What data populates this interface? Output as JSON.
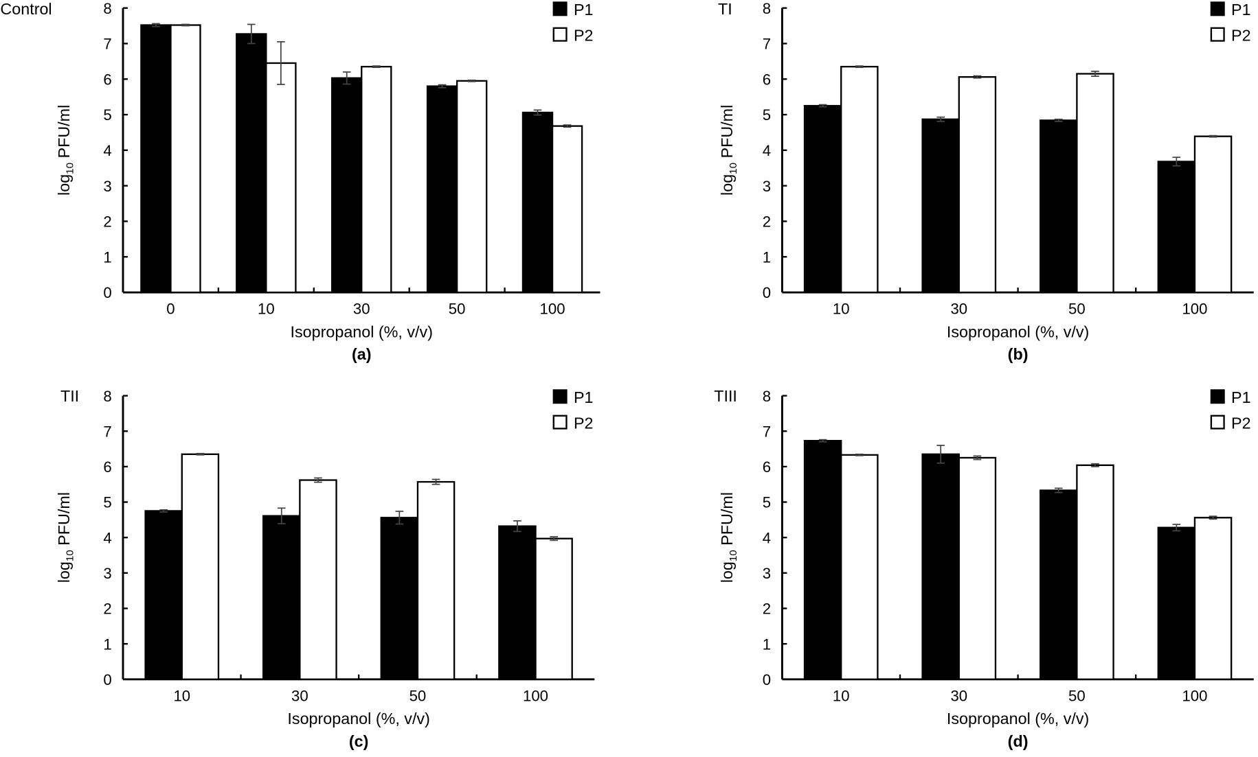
{
  "chart_data": [
    {
      "type": "bar",
      "panel_label": "(a)",
      "title": "Control",
      "xlabel": "Isopropanol (%, v/v)",
      "ylabel": "log10 PFU/ml",
      "ylim": [
        0,
        8
      ],
      "yticks": [
        "0",
        "1",
        "2",
        "3",
        "4",
        "5",
        "6",
        "7",
        "8"
      ],
      "categories": [
        "0",
        "10",
        "30",
        "50",
        "100"
      ],
      "legend_position": "top-right",
      "series": [
        {
          "name": "P1",
          "color": "#000000",
          "values": [
            7.52,
            7.27,
            6.03,
            5.8,
            5.06
          ],
          "errors": [
            0.04,
            0.27,
            0.17,
            0.04,
            0.07
          ]
        },
        {
          "name": "P2",
          "color": "#ffffff",
          "values": [
            7.52,
            6.45,
            6.35,
            5.95,
            4.68
          ],
          "errors": [
            0.02,
            0.6,
            0.02,
            0.02,
            0.03
          ]
        }
      ]
    },
    {
      "type": "bar",
      "panel_label": "(b)",
      "title": "TI",
      "xlabel": "Isopropanol (%, v/v)",
      "ylabel": "log10 PFU/ml",
      "ylim": [
        0,
        8
      ],
      "yticks": [
        "0",
        "1",
        "2",
        "3",
        "4",
        "5",
        "6",
        "7",
        "8"
      ],
      "categories": [
        "10",
        "30",
        "50",
        "100"
      ],
      "legend_position": "top-right",
      "series": [
        {
          "name": "P1",
          "color": "#000000",
          "values": [
            5.25,
            4.87,
            4.84,
            3.68
          ],
          "errors": [
            0.03,
            0.06,
            0.03,
            0.12
          ]
        },
        {
          "name": "P2",
          "color": "#ffffff",
          "values": [
            6.35,
            6.06,
            6.15,
            4.39
          ],
          "errors": [
            0.02,
            0.03,
            0.07,
            0.02
          ]
        }
      ]
    },
    {
      "type": "bar",
      "panel_label": "(c)",
      "title": "TII",
      "xlabel": "Isopropanol (%, v/v)",
      "ylabel": "log10 PFU/ml",
      "ylim": [
        0,
        8
      ],
      "yticks": [
        "0",
        "1",
        "2",
        "3",
        "4",
        "5",
        "6",
        "7",
        "8"
      ],
      "categories": [
        "10",
        "30",
        "50",
        "100"
      ],
      "legend_position": "top-right",
      "series": [
        {
          "name": "P1",
          "color": "#000000",
          "values": [
            4.75,
            4.61,
            4.56,
            4.32
          ],
          "errors": [
            0.03,
            0.22,
            0.18,
            0.15
          ]
        },
        {
          "name": "P2",
          "color": "#ffffff",
          "values": [
            6.35,
            5.62,
            5.57,
            3.97
          ],
          "errors": [
            0.02,
            0.06,
            0.07,
            0.05
          ]
        }
      ]
    },
    {
      "type": "bar",
      "panel_label": "(d)",
      "title": "TIII",
      "xlabel": "Isopropanol (%, v/v)",
      "ylabel": "log10 PFU/ml",
      "ylim": [
        0,
        8
      ],
      "yticks": [
        "0",
        "1",
        "2",
        "3",
        "4",
        "5",
        "6",
        "7",
        "8"
      ],
      "categories": [
        "10",
        "30",
        "50",
        "100"
      ],
      "legend_position": "top-right",
      "series": [
        {
          "name": "P1",
          "color": "#000000",
          "values": [
            6.73,
            6.35,
            5.33,
            4.28
          ],
          "errors": [
            0.03,
            0.25,
            0.06,
            0.09
          ]
        },
        {
          "name": "P2",
          "color": "#ffffff",
          "values": [
            6.33,
            6.25,
            6.04,
            4.56
          ],
          "errors": [
            0.02,
            0.05,
            0.04,
            0.04
          ]
        }
      ]
    }
  ]
}
